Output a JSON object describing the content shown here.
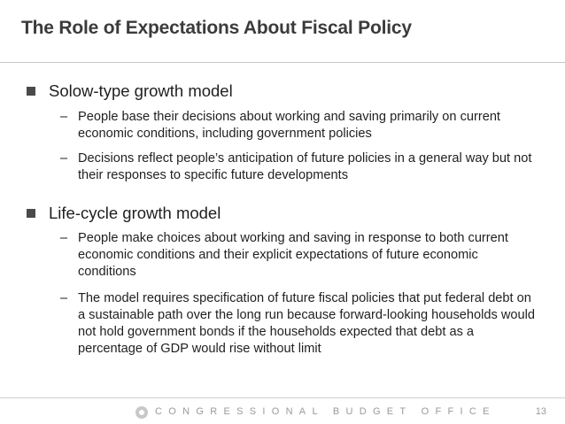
{
  "slide": {
    "title": "The Role of Expectations About Fiscal Policy",
    "sections": [
      {
        "heading": "Solow-type growth model",
        "points": [
          "People base their decisions about working and saving primarily on current economic conditions, including government policies",
          "Decisions reflect people’s anticipation of future policies in a general way but not their responses to specific future developments"
        ]
      },
      {
        "heading": "Life-cycle growth model",
        "points": [
          "People make choices about working and saving in response to both current economic conditions and their explicit expectations of future economic conditions",
          "The model requires specification of future fiscal policies that put federal debt on a sustainable path over the long run because forward-looking households would not hold government bonds if the households expected that debt as a percentage of GDP would rise without limit"
        ]
      }
    ],
    "dash": "–"
  },
  "footer": {
    "organization": "CONGRESSIONAL BUDGET OFFICE",
    "page_number": "13"
  }
}
